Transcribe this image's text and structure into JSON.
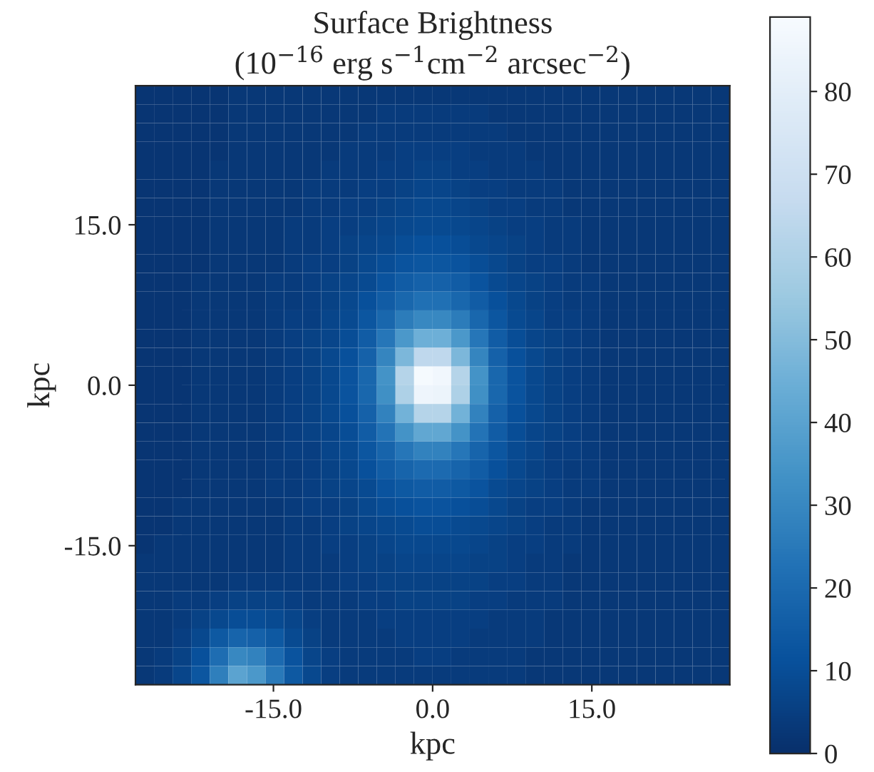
{
  "chart_data": {
    "type": "heatmap",
    "title": "Surface Brightness\n(10$^{−16}$ erg s$^{−1}$cm$^{−2}$ arcsec$^{−2}$)",
    "xlabel": "kpc",
    "ylabel": "kpc",
    "x": [
      -27.125,
      -25.375,
      -23.625,
      -21.875,
      -20.125,
      -18.375,
      -16.625,
      -14.875,
      -13.125,
      -11.375,
      -9.625,
      -7.875,
      -6.125,
      -4.375,
      -2.625,
      -0.875,
      0.875,
      2.625,
      4.375,
      6.125,
      7.875,
      9.625,
      11.375,
      13.125,
      14.875,
      16.625,
      18.375,
      20.125,
      21.875,
      23.625,
      25.375,
      27.125
    ],
    "y": [
      27.125,
      25.375,
      23.625,
      21.875,
      20.125,
      18.375,
      16.625,
      14.875,
      13.125,
      11.375,
      9.625,
      7.875,
      6.125,
      4.375,
      2.625,
      0.875,
      -0.875,
      -2.625,
      -4.375,
      -6.125,
      -7.875,
      -9.625,
      -11.375,
      -13.125,
      -14.875,
      -16.625,
      -18.375,
      -20.125,
      -21.875,
      -23.625,
      -25.375,
      -27.125
    ],
    "xlim": [
      -28,
      28
    ],
    "ylim": [
      -28,
      28
    ],
    "xticks": [
      {
        "value": -15,
        "label": "-15.0"
      },
      {
        "value": 0,
        "label": "0.0"
      },
      {
        "value": 15,
        "label": "15.0"
      }
    ],
    "yticks": [
      {
        "value": -15,
        "label": "-15.0"
      },
      {
        "value": 0,
        "label": "0.0"
      },
      {
        "value": 15,
        "label": "15.0"
      }
    ],
    "clim": [
      0,
      89
    ],
    "cticks": [
      0,
      10,
      20,
      30,
      40,
      50,
      60,
      70,
      80
    ],
    "cells": [
      [
        2,
        2,
        2,
        2,
        2,
        3,
        3,
        3,
        3,
        3,
        3,
        3,
        3,
        3,
        3,
        3,
        3,
        3,
        3,
        3,
        3,
        3,
        3,
        3,
        3,
        3,
        3,
        3,
        3,
        3,
        3,
        3
      ],
      [
        2,
        2,
        2,
        2,
        2,
        3,
        3,
        3,
        3,
        3,
        3,
        3,
        3,
        4,
        4,
        4,
        4,
        4,
        4,
        3,
        3,
        3,
        3,
        3,
        3,
        3,
        3,
        3,
        3,
        3,
        3,
        3
      ],
      [
        2,
        2,
        2,
        2,
        2,
        3,
        3,
        3,
        3,
        3,
        3,
        3,
        4,
        4,
        4,
        4,
        4,
        4,
        4,
        4,
        3,
        3,
        3,
        3,
        3,
        3,
        3,
        3,
        3,
        3,
        3,
        3
      ],
      [
        2,
        2,
        2,
        2,
        2,
        3,
        3,
        3,
        3,
        3,
        3,
        4,
        4,
        4,
        5,
        5,
        5,
        5,
        4,
        4,
        4,
        3,
        3,
        3,
        3,
        3,
        3,
        3,
        3,
        3,
        3,
        3
      ],
      [
        2,
        2,
        2,
        2,
        3,
        3,
        3,
        3,
        3,
        3,
        4,
        4,
        4,
        5,
        5,
        6,
        6,
        5,
        5,
        4,
        4,
        4,
        3,
        3,
        3,
        3,
        3,
        3,
        3,
        3,
        3,
        3
      ],
      [
        2,
        2,
        2,
        2,
        3,
        3,
        3,
        3,
        3,
        4,
        4,
        4,
        5,
        5,
        6,
        7,
        7,
        6,
        5,
        5,
        4,
        4,
        4,
        3,
        3,
        3,
        3,
        3,
        3,
        3,
        3,
        3
      ],
      [
        2,
        2,
        2,
        2,
        3,
        3,
        3,
        3,
        3,
        4,
        4,
        5,
        5,
        6,
        7,
        8,
        8,
        7,
        6,
        5,
        5,
        4,
        4,
        3,
        3,
        3,
        3,
        3,
        3,
        3,
        3,
        3
      ],
      [
        2,
        2,
        2,
        2,
        3,
        3,
        3,
        3,
        4,
        4,
        5,
        5,
        6,
        7,
        8,
        9,
        9,
        8,
        7,
        6,
        5,
        5,
        4,
        4,
        3,
        3,
        3,
        3,
        3,
        3,
        3,
        3
      ],
      [
        2,
        2,
        2,
        2,
        3,
        3,
        3,
        3,
        4,
        4,
        5,
        6,
        7,
        8,
        10,
        11,
        11,
        10,
        8,
        7,
        6,
        5,
        4,
        4,
        3,
        3,
        3,
        3,
        3,
        3,
        3,
        3
      ],
      [
        2,
        2,
        2,
        2,
        3,
        3,
        3,
        3,
        4,
        5,
        5,
        6,
        8,
        10,
        12,
        13,
        13,
        12,
        10,
        8,
        6,
        5,
        5,
        4,
        3,
        3,
        3,
        3,
        3,
        3,
        3,
        3
      ],
      [
        2,
        2,
        2,
        3,
        3,
        3,
        3,
        4,
        4,
        5,
        6,
        7,
        9,
        12,
        15,
        17,
        17,
        15,
        12,
        9,
        7,
        6,
        5,
        4,
        4,
        3,
        3,
        3,
        3,
        3,
        3,
        3
      ],
      [
        2,
        2,
        2,
        3,
        3,
        3,
        3,
        4,
        4,
        5,
        6,
        8,
        11,
        15,
        19,
        22,
        22,
        19,
        15,
        11,
        8,
        6,
        5,
        4,
        4,
        3,
        3,
        3,
        3,
        3,
        3,
        3
      ],
      [
        2,
        2,
        2,
        3,
        3,
        3,
        3,
        4,
        5,
        5,
        7,
        9,
        13,
        19,
        26,
        30,
        30,
        26,
        19,
        13,
        9,
        7,
        5,
        5,
        4,
        3,
        3,
        3,
        3,
        3,
        3,
        3
      ],
      [
        2,
        2,
        2,
        3,
        3,
        3,
        3,
        4,
        5,
        6,
        7,
        10,
        15,
        24,
        36,
        45,
        45,
        36,
        24,
        15,
        10,
        7,
        6,
        5,
        4,
        3,
        3,
        3,
        3,
        3,
        3,
        3
      ],
      [
        2,
        2,
        2,
        3,
        3,
        3,
        3,
        4,
        5,
        6,
        8,
        11,
        17,
        29,
        48,
        65,
        65,
        48,
        29,
        17,
        11,
        8,
        6,
        5,
        4,
        3,
        3,
        3,
        3,
        3,
        3,
        3
      ],
      [
        2,
        2,
        2,
        3,
        3,
        3,
        3,
        4,
        5,
        6,
        8,
        12,
        19,
        34,
        62,
        88,
        86,
        62,
        34,
        19,
        12,
        8,
        6,
        5,
        4,
        3,
        3,
        3,
        3,
        3,
        3,
        3
      ],
      [
        2,
        2,
        2,
        3,
        3,
        3,
        3,
        4,
        5,
        6,
        8,
        12,
        19,
        33,
        60,
        85,
        84,
        60,
        33,
        19,
        12,
        8,
        6,
        5,
        4,
        3,
        3,
        3,
        3,
        3,
        3,
        3
      ],
      [
        2,
        2,
        2,
        3,
        3,
        3,
        3,
        4,
        5,
        6,
        8,
        11,
        17,
        28,
        46,
        62,
        62,
        46,
        28,
        17,
        11,
        8,
        6,
        5,
        4,
        3,
        3,
        3,
        3,
        3,
        3,
        3
      ],
      [
        2,
        2,
        2,
        3,
        3,
        3,
        3,
        4,
        5,
        6,
        7,
        10,
        15,
        23,
        34,
        42,
        42,
        34,
        23,
        15,
        10,
        7,
        6,
        5,
        4,
        3,
        3,
        3,
        3,
        3,
        3,
        3
      ],
      [
        2,
        2,
        2,
        3,
        3,
        3,
        3,
        4,
        5,
        5,
        7,
        9,
        13,
        18,
        24,
        28,
        28,
        24,
        18,
        13,
        9,
        7,
        5,
        5,
        4,
        3,
        3,
        3,
        3,
        3,
        3,
        3
      ],
      [
        2,
        2,
        2,
        3,
        3,
        3,
        3,
        4,
        4,
        5,
        6,
        8,
        11,
        15,
        18,
        20,
        20,
        18,
        15,
        11,
        8,
        6,
        5,
        4,
        4,
        3,
        3,
        3,
        3,
        3,
        3,
        3
      ],
      [
        2,
        2,
        2,
        3,
        3,
        3,
        3,
        4,
        4,
        5,
        6,
        7,
        9,
        12,
        14,
        15,
        15,
        14,
        12,
        9,
        7,
        6,
        5,
        4,
        4,
        3,
        3,
        3,
        3,
        3,
        3,
        3
      ],
      [
        2,
        2,
        3,
        3,
        3,
        3,
        3,
        3,
        4,
        5,
        5,
        6,
        8,
        10,
        11,
        12,
        12,
        11,
        10,
        8,
        6,
        5,
        5,
        4,
        3,
        3,
        3,
        3,
        3,
        3,
        3,
        3
      ],
      [
        2,
        2,
        3,
        3,
        3,
        3,
        3,
        3,
        4,
        4,
        5,
        6,
        7,
        8,
        9,
        10,
        10,
        9,
        8,
        7,
        6,
        5,
        4,
        4,
        3,
        3,
        3,
        3,
        3,
        3,
        3,
        3
      ],
      [
        2,
        3,
        3,
        3,
        3,
        3,
        3,
        3,
        4,
        4,
        5,
        5,
        6,
        7,
        8,
        8,
        8,
        8,
        7,
        6,
        5,
        5,
        4,
        4,
        3,
        3,
        3,
        3,
        3,
        3,
        3,
        3
      ],
      [
        3,
        3,
        3,
        3,
        3,
        3,
        3,
        3,
        4,
        4,
        4,
        5,
        6,
        6,
        7,
        7,
        7,
        7,
        6,
        6,
        5,
        4,
        4,
        3,
        3,
        3,
        3,
        3,
        3,
        3,
        3,
        3
      ],
      [
        3,
        3,
        3,
        3,
        3,
        4,
        4,
        4,
        4,
        4,
        4,
        5,
        5,
        6,
        6,
        6,
        6,
        6,
        6,
        5,
        5,
        4,
        4,
        3,
        3,
        3,
        3,
        3,
        3,
        3,
        3,
        3
      ],
      [
        3,
        3,
        4,
        4,
        5,
        6,
        6,
        6,
        5,
        4,
        4,
        4,
        5,
        5,
        6,
        6,
        6,
        6,
        5,
        5,
        4,
        4,
        4,
        3,
        3,
        3,
        3,
        3,
        3,
        3,
        3,
        3
      ],
      [
        3,
        3,
        4,
        6,
        8,
        10,
        10,
        9,
        7,
        5,
        4,
        4,
        4,
        5,
        5,
        5,
        5,
        5,
        5,
        4,
        4,
        4,
        3,
        3,
        3,
        3,
        3,
        3,
        3,
        3,
        3,
        3
      ],
      [
        3,
        3,
        5,
        8,
        14,
        18,
        17,
        14,
        9,
        6,
        4,
        4,
        4,
        4,
        5,
        5,
        5,
        5,
        4,
        4,
        4,
        4,
        3,
        3,
        3,
        3,
        3,
        3,
        3,
        3,
        3,
        3
      ],
      [
        3,
        4,
        6,
        11,
        21,
        30,
        28,
        20,
        12,
        7,
        5,
        4,
        4,
        4,
        4,
        5,
        5,
        4,
        4,
        4,
        4,
        3,
        3,
        3,
        3,
        3,
        3,
        3,
        3,
        3,
        3,
        3
      ],
      [
        3,
        4,
        7,
        13,
        27,
        40,
        36,
        25,
        14,
        8,
        5,
        4,
        4,
        4,
        4,
        4,
        4,
        4,
        4,
        4,
        4,
        3,
        3,
        3,
        3,
        3,
        3,
        3,
        3,
        3,
        3,
        3
      ]
    ]
  }
}
